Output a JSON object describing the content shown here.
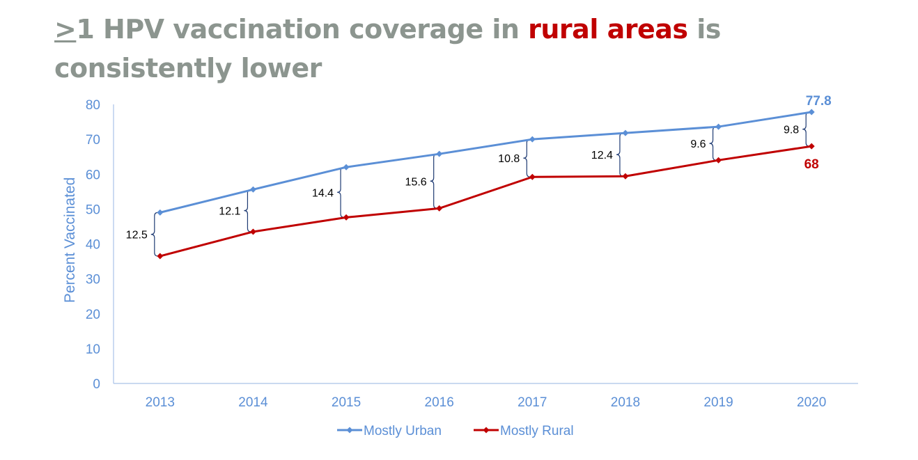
{
  "title": {
    "prefix_symbol": ">",
    "part1": "1 HPV vaccination coverage in ",
    "accent": "rural areas",
    "part2": " is consistently lower"
  },
  "colors": {
    "title_gray": "#8c958f",
    "accent_red": "#c00000",
    "urban_blue": "#5b8fd6",
    "rural_red": "#c00000",
    "axis_blue": "#5b8fd6"
  },
  "chart_data": {
    "type": "line",
    "title": ">1 HPV vaccination coverage in rural areas is consistently lower",
    "xlabel": "",
    "ylabel": "Percent Vaccinated",
    "ylim": [
      0,
      80
    ],
    "yticks": [
      0,
      10,
      20,
      30,
      40,
      50,
      60,
      70,
      80
    ],
    "categories": [
      "2013",
      "2014",
      "2015",
      "2016",
      "2017",
      "2018",
      "2019",
      "2020"
    ],
    "series": [
      {
        "name": "Mostly Urban",
        "color": "#5b8fd6",
        "values": [
          49,
          55.6,
          62,
          65.8,
          70,
          71.8,
          73.6,
          77.8
        ]
      },
      {
        "name": "Mostly Rural",
        "color": "#c00000",
        "values": [
          36.5,
          43.5,
          47.6,
          50.2,
          59.2,
          59.4,
          64,
          68
        ]
      }
    ],
    "gaps": [
      "12.5",
      "12.1",
      "14.4",
      "15.6",
      "10.8",
      "12.4",
      "9.6",
      "9.8"
    ],
    "end_labels": {
      "urban": "77.8",
      "rural": "68"
    },
    "legend": {
      "position": "bottom-center",
      "entries": [
        "Mostly Urban",
        "Mostly Rural"
      ]
    },
    "grid": false
  }
}
